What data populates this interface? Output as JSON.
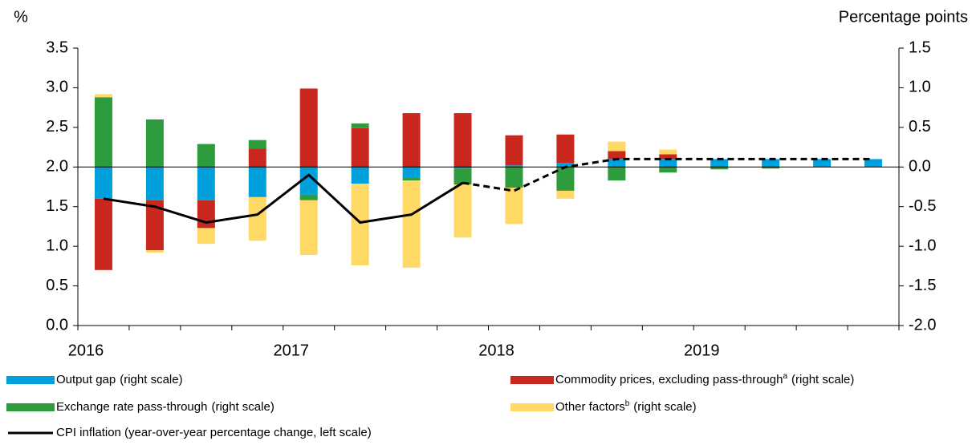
{
  "chart_data": {
    "type": "bar",
    "left_axis_label": "%",
    "right_axis_label": "Percentage points",
    "categories": [
      "2016",
      null,
      null,
      null,
      "2017",
      null,
      null,
      null,
      "2018",
      null,
      null,
      null,
      "2019",
      null,
      null,
      null
    ],
    "ylim": [
      0,
      3.5
    ],
    "yticks": [
      {
        "value": 0,
        "label": "0.0"
      },
      {
        "value": 0.5,
        "label": "0.5"
      },
      {
        "value": 1,
        "label": "1.0"
      },
      {
        "value": 1.5,
        "label": "1.5"
      },
      {
        "value": 2,
        "label": "2.0"
      },
      {
        "value": 2.5,
        "label": "2.5"
      },
      {
        "value": 3,
        "label": "3.0"
      },
      {
        "value": 3.5,
        "label": "3.5"
      }
    ],
    "y2lim": [
      -2,
      1.5
    ],
    "y2ticks": [
      {
        "value": -2,
        "label": "-2.0"
      },
      {
        "value": -1.5,
        "label": "-1.5"
      },
      {
        "value": -1,
        "label": "-1.0"
      },
      {
        "value": -0.5,
        "label": "-0.5"
      },
      {
        "value": 0,
        "label": "0.0"
      },
      {
        "value": 0.5,
        "label": "0.5"
      },
      {
        "value": 1,
        "label": "1.0"
      },
      {
        "value": 1.5,
        "label": "1.5"
      }
    ],
    "stacked": true,
    "series": [
      {
        "name": "Output gap",
        "scale_note": "(right scale)",
        "color": "#00a0dd",
        "axis": "y2",
        "type": "bar",
        "values": [
          -0.4,
          -0.42,
          -0.42,
          -0.38,
          -0.35,
          -0.21,
          -0.13,
          -0.02,
          0.02,
          0.05,
          0.1,
          0.1,
          0.1,
          0.1,
          0.1,
          0.1
        ]
      },
      {
        "name": "Commodity prices, excluding pass-through",
        "footnote": "a",
        "scale_note": "(right scale)",
        "color": "#c8281e",
        "axis": "y2",
        "type": "bar",
        "values": [
          -0.9,
          -0.63,
          -0.35,
          0.23,
          0.99,
          0.49,
          0.68,
          0.68,
          0.38,
          0.36,
          0.1,
          0.06,
          0,
          0,
          0,
          0
        ]
      },
      {
        "name": "Exchange rate pass-through",
        "scale_note": "(right scale)",
        "color": "#2e9b3c",
        "axis": "y2",
        "type": "bar",
        "values": [
          0.88,
          0.6,
          0.29,
          0.11,
          -0.07,
          0.06,
          -0.04,
          -0.2,
          -0.26,
          -0.3,
          -0.17,
          -0.07,
          -0.03,
          -0.02,
          0,
          0
        ]
      },
      {
        "name": "Other factors",
        "footnote": "b",
        "scale_note": "(right scale)",
        "color": "#ffd966",
        "axis": "y2",
        "type": "bar",
        "values": [
          0.04,
          -0.03,
          -0.2,
          -0.55,
          -0.69,
          -1.03,
          -1.1,
          -0.67,
          -0.46,
          -0.1,
          0.12,
          0.06,
          0,
          0,
          0,
          0
        ]
      },
      {
        "name": "CPI inflation (year-over-year percentage change, left scale)",
        "color": "#000000",
        "type": "line",
        "dashed_from_index": 7,
        "values": [
          1.6,
          1.5,
          1.3,
          1.4,
          1.9,
          1.3,
          1.4,
          1.8,
          1.7,
          2.0,
          2.1,
          2.1,
          2.1,
          2.1,
          2.1,
          2.1
        ]
      }
    ]
  }
}
